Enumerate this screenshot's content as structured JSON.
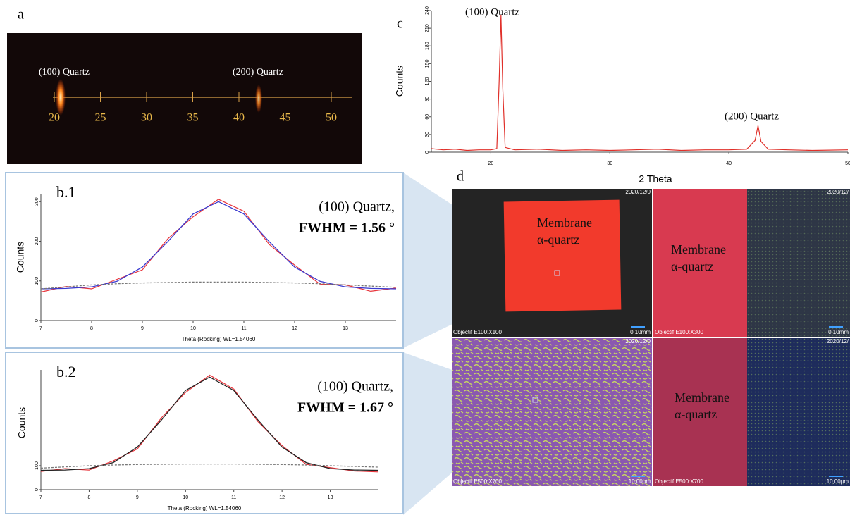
{
  "panel_a": {
    "label": "a",
    "annotations": [
      "(100) Quartz",
      "(200) Quartz"
    ],
    "scale": {
      "xlim": [
        20,
        50
      ],
      "ticks": [
        20,
        25,
        30,
        35,
        40,
        45,
        50
      ]
    }
  },
  "chart_data": [
    {
      "type": "line",
      "label": "c",
      "ylabel": "Counts",
      "xlabel": "2 Theta",
      "annotations": [
        "(100) Quartz",
        "(200) Quartz"
      ],
      "x": [
        15,
        16,
        17,
        18,
        19,
        20,
        20.5,
        20.7,
        20.85,
        21,
        21.2,
        22,
        24,
        26,
        28,
        30,
        32,
        34,
        36,
        38,
        40,
        41.5,
        42.2,
        42.45,
        42.7,
        43.3,
        45,
        47,
        50
      ],
      "series": [
        {
          "color": "#e0302a",
          "values": [
            6,
            4,
            5,
            3,
            4,
            4,
            6,
            120,
            232,
            110,
            8,
            4,
            5,
            3,
            4,
            3,
            4,
            5,
            3,
            4,
            4,
            5,
            20,
            45,
            18,
            5,
            4,
            3,
            4
          ]
        }
      ],
      "xlim": [
        15,
        50
      ],
      "ylim": [
        0,
        240
      ],
      "xticks": [
        20,
        30,
        40,
        50
      ],
      "yticks": [
        0,
        30,
        60,
        90,
        120,
        150,
        180,
        210,
        240
      ]
    },
    {
      "type": "line",
      "label": "b.1",
      "ylabel": "Counts",
      "xlabel": "Theta (Rocking) WL=1.54060",
      "annotations": [
        "(100) Quartz,",
        "FWHM = 1.56 °"
      ],
      "x": [
        7,
        7.5,
        8,
        8.5,
        9,
        9.5,
        10,
        10.5,
        11,
        11.5,
        12,
        12.5,
        13,
        13.5,
        14
      ],
      "series": [
        {
          "color": "#e8333a",
          "values": [
            72,
            86,
            80,
            104,
            128,
            206,
            262,
            306,
            276,
            192,
            140,
            92,
            90,
            74,
            82
          ]
        },
        {
          "color": "#3a3ad0",
          "values": [
            80,
            81,
            85,
            99,
            135,
            199,
            269,
            300,
            269,
            199,
            135,
            99,
            85,
            81,
            80
          ]
        },
        {
          "color": "#777777",
          "values": [
            80,
            85,
            90,
            93,
            95,
            96,
            97,
            97,
            97,
            96,
            95,
            93,
            90,
            87,
            84
          ]
        }
      ],
      "xlim": [
        7,
        14
      ],
      "ylim": [
        0,
        320
      ],
      "xticks": [
        7,
        8,
        9,
        10,
        11,
        12,
        13
      ],
      "yticks": [
        0,
        100,
        200,
        300
      ]
    },
    {
      "type": "line",
      "label": "b.2",
      "ylabel": "Counts",
      "xlabel": "Theta (Rocking) WL=1.54060",
      "annotations": [
        "(100) Quartz,",
        "FWHM =  1.67 °"
      ],
      "x": [
        7,
        7.5,
        8,
        8.5,
        9,
        9.5,
        10,
        10.5,
        11,
        11.5,
        12,
        12.5,
        13,
        13.5,
        14
      ],
      "series": [
        {
          "color": "#e8333a",
          "values": [
            76,
            88,
            82,
            120,
            170,
            300,
            406,
            478,
            420,
            284,
            184,
            106,
            92,
            78,
            74
          ]
        },
        {
          "color": "#222222",
          "values": [
            81,
            82,
            88,
            113,
            178,
            291,
            414,
            470,
            414,
            291,
            178,
            113,
            88,
            82,
            81
          ]
        },
        {
          "color": "#777777",
          "values": [
            90,
            95,
            100,
            103,
            105,
            106,
            107,
            107,
            107,
            106,
            105,
            103,
            100,
            97,
            94
          ]
        }
      ],
      "xlim": [
        7,
        14
      ],
      "ylim": [
        0,
        500
      ],
      "xticks": [
        7,
        8,
        9,
        10,
        11,
        12,
        13
      ],
      "yticks": [
        0,
        100
      ]
    }
  ],
  "panel_d": {
    "label": "d",
    "images": [
      {
        "timestamp": "2020/12/0",
        "objective": "Objectif E100:X100",
        "scale": "0,10mm",
        "caption": [
          "Membrane",
          "α-quartz"
        ]
      },
      {
        "timestamp": "2020/12/",
        "objective": "Objectif E100:X300",
        "scale": "0,10mm",
        "caption": [
          "Membrane",
          "α-quartz"
        ]
      },
      {
        "timestamp": "2020/12/0",
        "objective": "Objectif E500:X700",
        "scale": "10,00µm"
      },
      {
        "timestamp": "2020/12/",
        "objective": "Objectif E500:X700",
        "scale": "10,00µm",
        "caption": [
          "Membrane",
          "α-quartz"
        ]
      }
    ]
  }
}
